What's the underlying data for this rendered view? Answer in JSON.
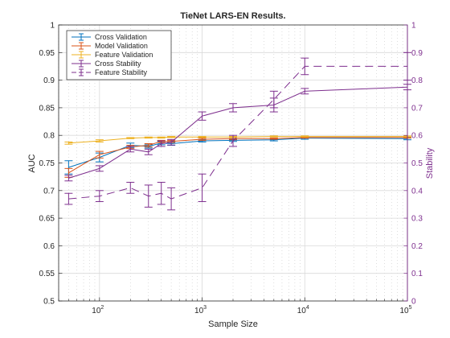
{
  "chart_data": {
    "type": "line",
    "title": "TieNet LARS-EN Results.",
    "xlabel": "Sample Size",
    "ylabel": "AUC",
    "y2label": "Stability",
    "xscale": "log",
    "xlim": [
      40,
      100000
    ],
    "ylim": [
      0.5,
      1.0
    ],
    "y2lim": [
      0,
      1
    ],
    "grid": true,
    "legend_position": "top-left",
    "x_tick_labels": [
      "10^2",
      "10^3",
      "10^4",
      "10^5"
    ],
    "y_tick_labels": [
      "0.5",
      "0.55",
      "0.6",
      "0.65",
      "0.7",
      "0.75",
      "0.8",
      "0.85",
      "0.9",
      "0.95",
      "1"
    ],
    "y2_tick_labels": [
      "0",
      "0.1",
      "0.2",
      "0.3",
      "0.4",
      "0.5",
      "0.6",
      "0.7",
      "0.8",
      "0.9",
      "1"
    ],
    "x": [
      50,
      100,
      200,
      300,
      400,
      500,
      1000,
      2000,
      5000,
      10000,
      100000
    ],
    "series": [
      {
        "name": "Cross Validation",
        "axis": "left",
        "color": "#0072BD",
        "style": "solid",
        "values": [
          0.742,
          0.76,
          0.782,
          0.78,
          0.786,
          0.785,
          0.79,
          0.791,
          0.792,
          0.795,
          0.794
        ],
        "errors": [
          0.012,
          0.008,
          0.004,
          0.003,
          0.003,
          0.003,
          0.002,
          0.002,
          0.002,
          0.002,
          0.002
        ]
      },
      {
        "name": "Model Validation",
        "axis": "left",
        "color": "#D95319",
        "style": "solid",
        "values": [
          0.732,
          0.765,
          0.779,
          0.782,
          0.789,
          0.789,
          0.793,
          0.794,
          0.794,
          0.796,
          0.796
        ],
        "errors": [
          0.008,
          0.006,
          0.003,
          0.003,
          0.002,
          0.002,
          0.002,
          0.002,
          0.001,
          0.001,
          0.001
        ]
      },
      {
        "name": "Feature Validation",
        "axis": "left",
        "color": "#EDB120",
        "style": "solid",
        "values": [
          0.786,
          0.79,
          0.795,
          0.796,
          0.796,
          0.797,
          0.797,
          0.797,
          0.798,
          0.798,
          0.798
        ],
        "errors": [
          0.002,
          0.002,
          0.001,
          0.001,
          0.001,
          0.001,
          0.001,
          0.001,
          0.001,
          0.001,
          0.001
        ]
      },
      {
        "name": "Cross Stability",
        "axis": "right",
        "color": "#7E2F8E",
        "style": "solid",
        "values": [
          0.445,
          0.48,
          0.55,
          0.54,
          0.57,
          0.575,
          0.67,
          0.7,
          0.71,
          0.76,
          0.775
        ],
        "errors": [
          0.01,
          0.01,
          0.01,
          0.01,
          0.01,
          0.01,
          0.015,
          0.015,
          0.025,
          0.01,
          0.01
        ]
      },
      {
        "name": "Feature Stability",
        "axis": "right",
        "color": "#7E2F8E",
        "style": "dashed",
        "values": [
          0.37,
          0.38,
          0.41,
          0.38,
          0.39,
          0.37,
          0.41,
          0.58,
          0.73,
          0.85,
          0.85
        ],
        "errors": [
          0.02,
          0.02,
          0.02,
          0.04,
          0.04,
          0.04,
          0.05,
          0.02,
          0.03,
          0.03,
          0.05
        ]
      }
    ]
  }
}
